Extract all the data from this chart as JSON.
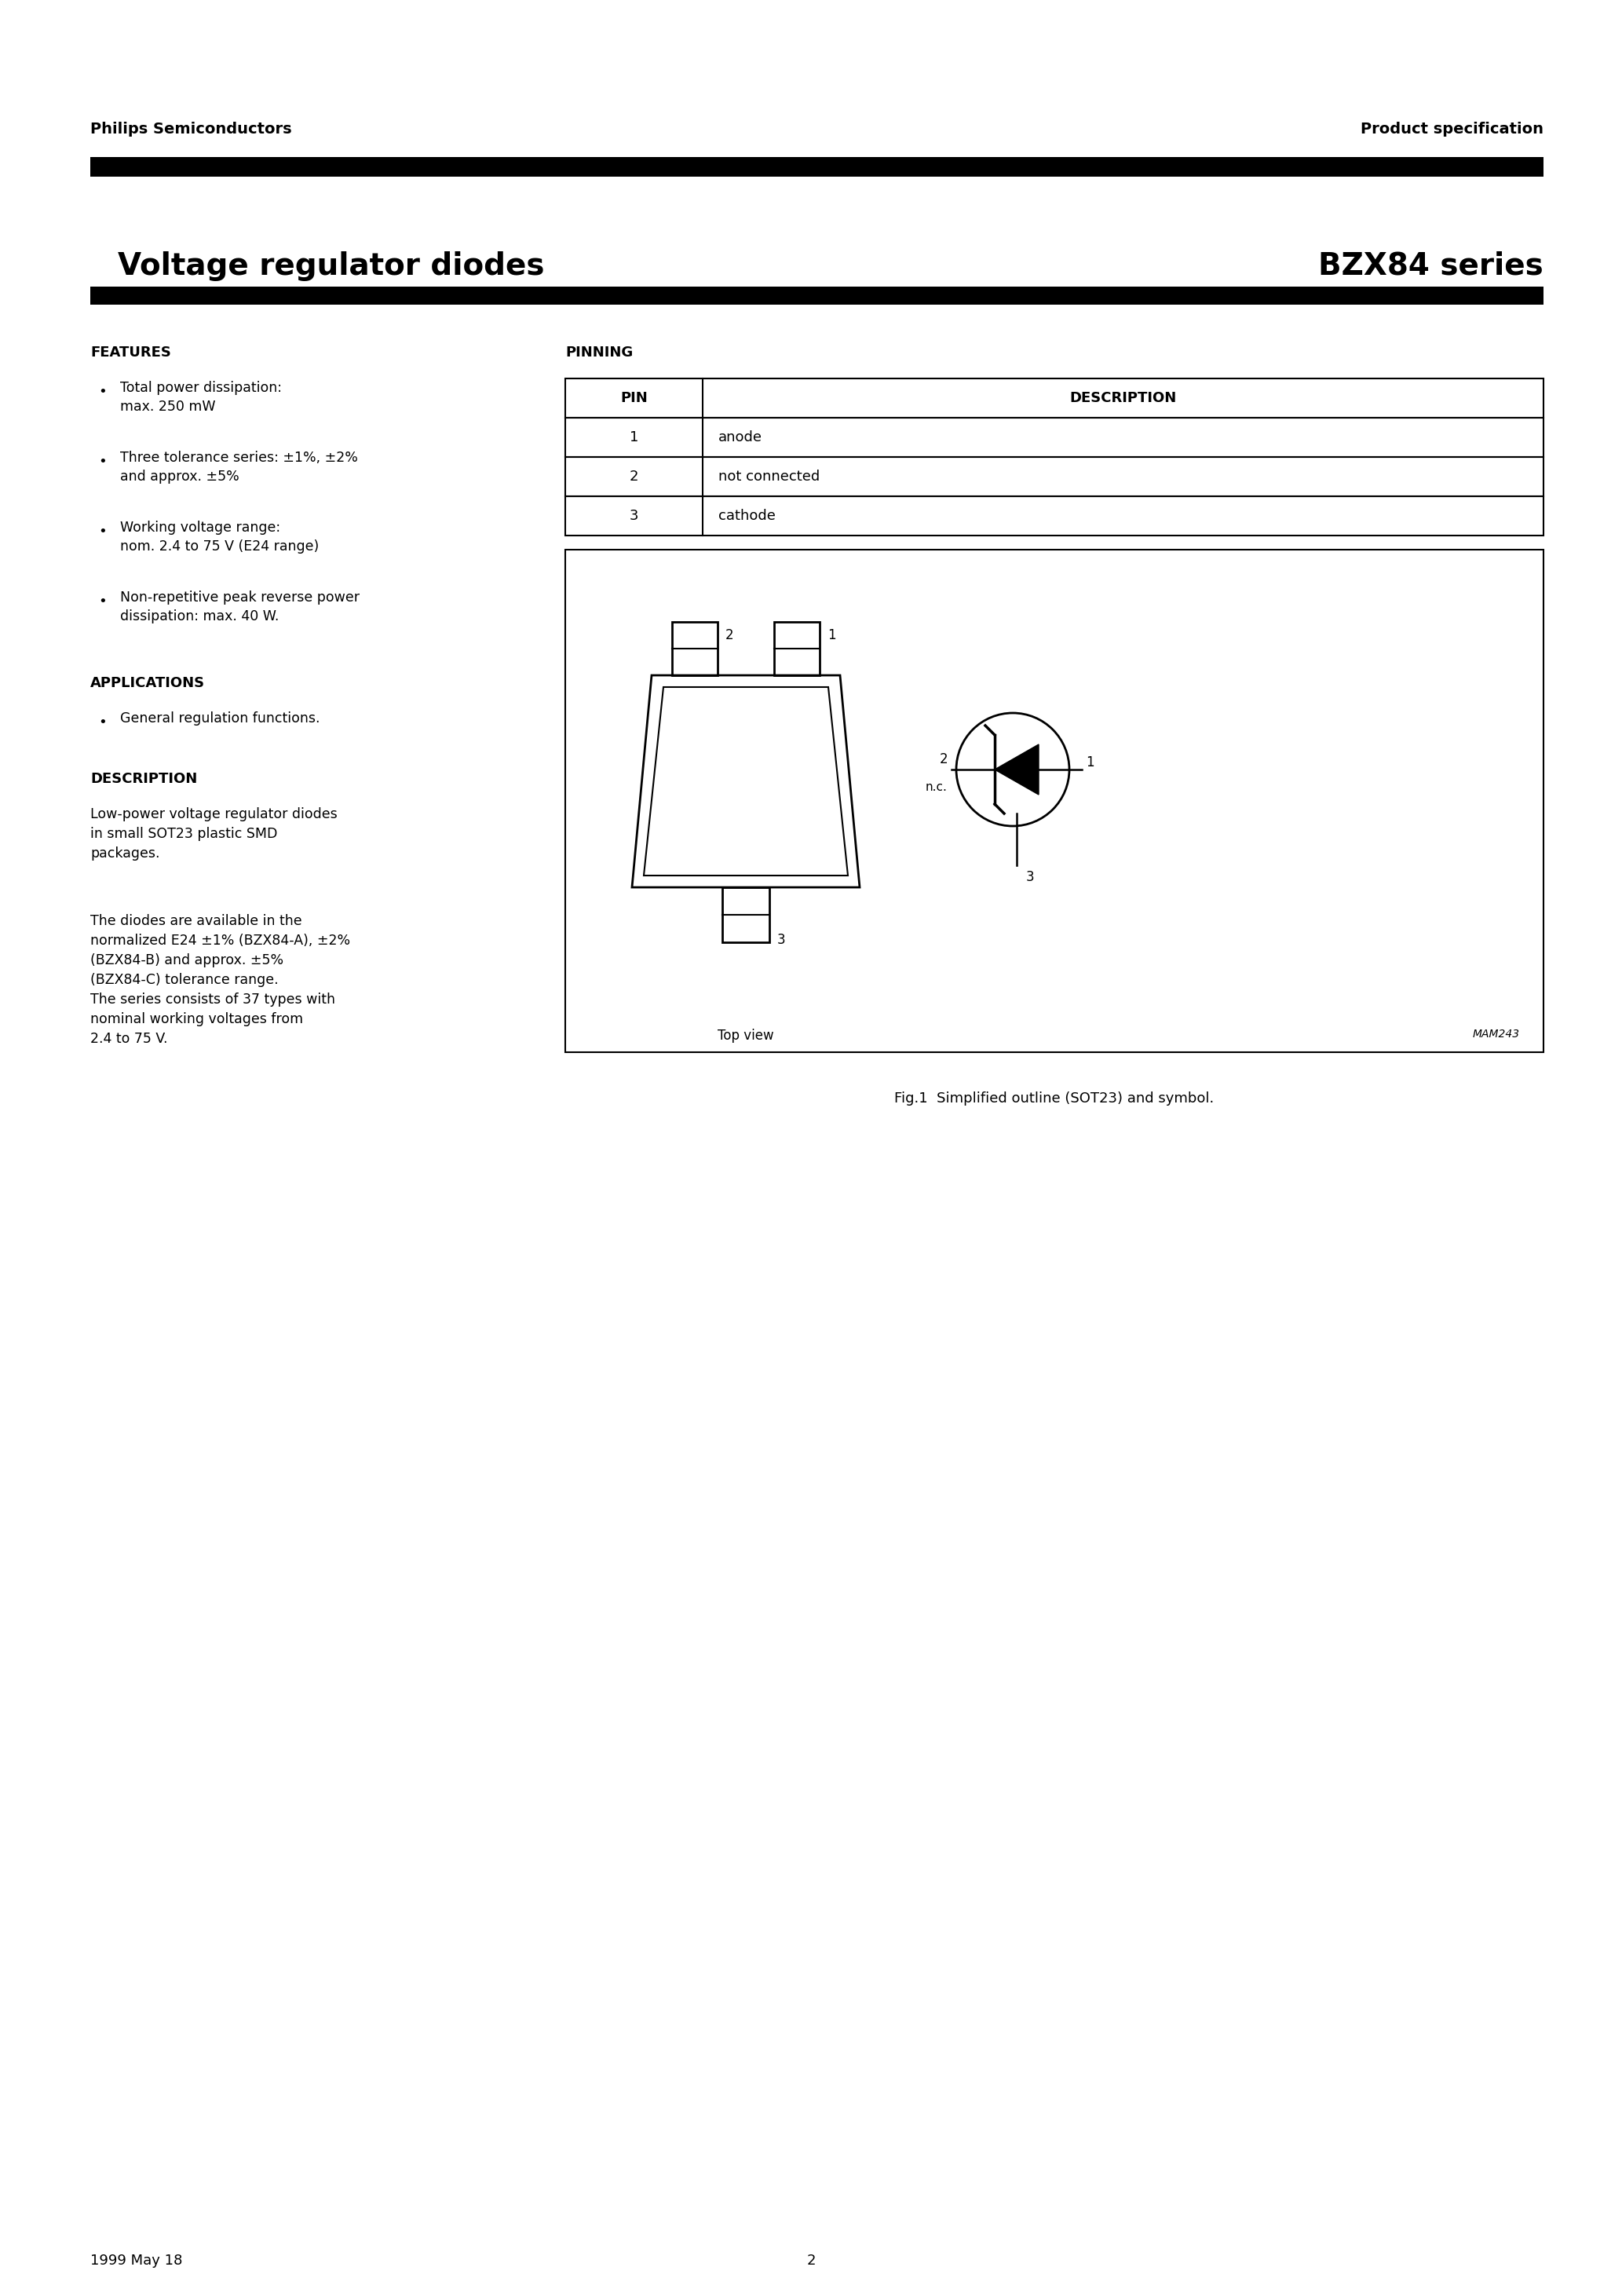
{
  "page_title_left": "Voltage regulator diodes",
  "page_title_right": "BZX84 series",
  "header_left": "Philips Semiconductors",
  "header_right": "Product specification",
  "footer_left": "1999 May 18",
  "footer_center": "2",
  "features_title": "FEATURES",
  "features_bullets": [
    "Total power dissipation:\nmax. 250 mW",
    "Three tolerance series: ±1%, ±2%\nand approx. ±5%",
    "Working voltage range:\nnom. 2.4 to 75 V (E24 range)",
    "Non-repetitive peak reverse power\ndissipation: max. 40 W."
  ],
  "applications_title": "APPLICATIONS",
  "applications_bullets": [
    "General regulation functions."
  ],
  "description_title": "DESCRIPTION",
  "description_text1": "Low-power voltage regulator diodes\nin small SOT23 plastic SMD\npackages.",
  "description_text2": "The diodes are available in the\nnormalized E24 ±1% (BZX84-A), ±2%\n(BZX84-B) and approx. ±5%\n(BZX84-C) tolerance range.\nThe series consists of 37 types with\nnominal working voltages from\n2.4 to 75 V.",
  "pinning_title": "PINNING",
  "pin_table_headers": [
    "PIN",
    "DESCRIPTION"
  ],
  "pin_table_rows": [
    [
      "1",
      "anode"
    ],
    [
      "2",
      "not connected"
    ],
    [
      "3",
      "cathode"
    ]
  ],
  "fig_caption": "Fig.1  Simplified outline (SOT23) and symbol.",
  "mam_ref": "MAM243",
  "bg_color": "#ffffff",
  "text_color": "#000000",
  "bar_color": "#000000"
}
